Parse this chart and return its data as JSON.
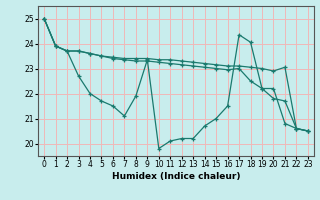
{
  "title": "",
  "xlabel": "Humidex (Indice chaleur)",
  "xlim": [
    -0.5,
    23.5
  ],
  "ylim": [
    19.5,
    25.5
  ],
  "yticks": [
    20,
    21,
    22,
    23,
    24,
    25
  ],
  "xticks": [
    0,
    1,
    2,
    3,
    4,
    5,
    6,
    7,
    8,
    9,
    10,
    11,
    12,
    13,
    14,
    15,
    16,
    17,
    18,
    19,
    20,
    21,
    22,
    23
  ],
  "bg_color": "#c8eded",
  "line_color": "#1a7a6e",
  "grid_color": "#f0b8b8",
  "lines": [
    [
      [
        0,
        25.0
      ],
      [
        1,
        23.9
      ],
      [
        2,
        23.7
      ],
      [
        3,
        23.7
      ],
      [
        4,
        23.6
      ],
      [
        5,
        23.5
      ],
      [
        6,
        23.4
      ],
      [
        7,
        23.35
      ],
      [
        8,
        23.3
      ],
      [
        9,
        23.3
      ],
      [
        10,
        23.25
      ],
      [
        11,
        23.2
      ],
      [
        12,
        23.15
      ],
      [
        13,
        23.1
      ],
      [
        14,
        23.05
      ],
      [
        15,
        23.0
      ],
      [
        16,
        22.95
      ],
      [
        17,
        23.0
      ],
      [
        18,
        22.5
      ],
      [
        19,
        22.2
      ],
      [
        20,
        21.8
      ],
      [
        21,
        21.7
      ],
      [
        22,
        20.6
      ],
      [
        23,
        20.5
      ]
    ],
    [
      [
        0,
        25.0
      ],
      [
        1,
        23.9
      ],
      [
        2,
        23.7
      ],
      [
        3,
        22.7
      ],
      [
        4,
        22.0
      ],
      [
        5,
        21.7
      ],
      [
        6,
        21.5
      ],
      [
        7,
        21.1
      ],
      [
        8,
        21.9
      ],
      [
        9,
        23.35
      ],
      [
        10,
        19.8
      ],
      [
        11,
        20.1
      ],
      [
        12,
        20.2
      ],
      [
        13,
        20.2
      ],
      [
        14,
        20.7
      ],
      [
        15,
        21.0
      ],
      [
        16,
        21.5
      ],
      [
        17,
        24.35
      ],
      [
        18,
        24.05
      ],
      [
        19,
        22.2
      ],
      [
        20,
        22.2
      ],
      [
        21,
        20.8
      ],
      [
        22,
        20.6
      ],
      [
        23,
        20.5
      ]
    ],
    [
      [
        0,
        25.0
      ],
      [
        1,
        23.9
      ],
      [
        2,
        23.7
      ],
      [
        3,
        23.7
      ],
      [
        4,
        23.6
      ],
      [
        5,
        23.5
      ],
      [
        6,
        23.45
      ],
      [
        7,
        23.4
      ],
      [
        8,
        23.4
      ],
      [
        9,
        23.4
      ],
      [
        10,
        23.35
      ],
      [
        11,
        23.35
      ],
      [
        12,
        23.3
      ],
      [
        13,
        23.25
      ],
      [
        14,
        23.2
      ],
      [
        15,
        23.15
      ],
      [
        16,
        23.1
      ],
      [
        17,
        23.1
      ],
      [
        18,
        23.05
      ],
      [
        19,
        23.0
      ],
      [
        20,
        22.9
      ],
      [
        21,
        23.05
      ],
      [
        22,
        20.6
      ],
      [
        23,
        20.5
      ]
    ]
  ]
}
